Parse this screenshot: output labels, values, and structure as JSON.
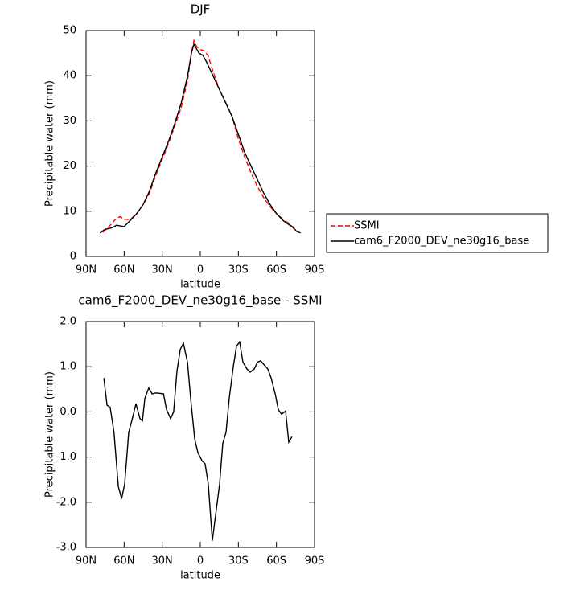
{
  "chart_data": [
    {
      "type": "line",
      "title": "DJF",
      "xlabel": "latitude",
      "ylabel": "Precipitable water (mm)",
      "xlim": [
        90,
        -90
      ],
      "xticks": [
        {
          "value": 90,
          "label": "90N"
        },
        {
          "value": 60,
          "label": "60N"
        },
        {
          "value": 30,
          "label": "30N"
        },
        0,
        {
          "value": -30,
          "label": "30S"
        },
        {
          "value": -60,
          "label": "60S"
        },
        {
          "value": -90,
          "label": "90S"
        }
      ],
      "ylim": [
        0,
        50
      ],
      "yticks": [
        0,
        10,
        20,
        30,
        40,
        50
      ],
      "legend": "right",
      "series": [
        {
          "name": "SSMI",
          "color": "#ff0000",
          "line_style": "dashed",
          "x": [
            77,
            73,
            69,
            66,
            63,
            60,
            55,
            50,
            45,
            40,
            35,
            30,
            25,
            20,
            15,
            10,
            7,
            5,
            3,
            0,
            -3,
            -6,
            -10,
            -15,
            -20,
            -25,
            -30,
            -35,
            -40,
            -45,
            -50,
            -55,
            -60,
            -65,
            -70,
            -74
          ],
          "values": [
            5.3,
            6.3,
            7.5,
            8.5,
            8.8,
            8.2,
            8.2,
            9.5,
            11.5,
            14,
            18,
            21.5,
            25,
            29,
            33,
            39,
            45,
            47.8,
            46.5,
            45.8,
            45.5,
            44.5,
            41,
            37,
            34,
            31,
            26,
            22,
            18.5,
            15.5,
            13,
            11,
            9.5,
            8.2,
            7.3,
            6
          ]
        },
        {
          "name": "cam6_F2000_DEV_ne30g16_base",
          "color": "#000000",
          "line_style": "solid",
          "x": [
            79,
            75,
            70,
            66,
            60,
            55,
            50,
            45,
            40,
            35,
            30,
            25,
            20,
            15,
            10,
            7,
            5,
            3,
            1,
            -2,
            -5,
            -10,
            -15,
            -20,
            -25,
            -30,
            -35,
            -40,
            -45,
            -50,
            -55,
            -60,
            -65,
            -70,
            -73,
            -76,
            -79
          ],
          "values": [
            5.2,
            6,
            6.3,
            6.9,
            6.6,
            8,
            9.5,
            11.5,
            14.5,
            18.5,
            22,
            25.5,
            29.5,
            34,
            40,
            45,
            47,
            46,
            45,
            44.5,
            43,
            40,
            37,
            34,
            31,
            27,
            23,
            20,
            17,
            14,
            11.5,
            9.5,
            8,
            7,
            6.5,
            5.5,
            5.2
          ]
        }
      ]
    },
    {
      "type": "line",
      "title": "cam6_F2000_DEV_ne30g16_base - SSMI",
      "xlabel": "latitude",
      "ylabel": "Precipitable water (mm)",
      "xlim": [
        90,
        -90
      ],
      "xticks": [
        {
          "value": 90,
          "label": "90N"
        },
        {
          "value": 60,
          "label": "60N"
        },
        {
          "value": 30,
          "label": "30N"
        },
        0,
        {
          "value": -30,
          "label": "30S"
        },
        {
          "value": -60,
          "label": "60S"
        },
        {
          "value": -90,
          "label": "90S"
        }
      ],
      "ylim": [
        -3,
        2
      ],
      "yticks": [
        {
          "value": -3,
          "label": "-3.0"
        },
        {
          "value": -2,
          "label": "-2.0"
        },
        {
          "value": -1,
          "label": "-1.0"
        },
        {
          "value": 0,
          "label": "0.0"
        },
        {
          "value": 1,
          "label": "1.0"
        },
        {
          "value": 2,
          "label": "2.0"
        }
      ],
      "series": [
        {
          "color": "#000000",
          "line_style": "solid",
          "x": [
            76,
            73.5,
            71,
            68,
            64.6,
            62,
            59.6,
            56.4,
            54,
            50.7,
            47.5,
            45.6,
            43.7,
            40.6,
            38,
            35,
            29,
            26.6,
            23.4,
            21,
            18.4,
            15.8,
            13.3,
            10.1,
            7.6,
            4.4,
            1.9,
            -1.3,
            -3.8,
            -6.3,
            -9.5,
            -12,
            -15.2,
            -17.7,
            -20.3,
            -22.8,
            -26,
            -28.5,
            -31,
            -33.6,
            -36.8,
            -39.3,
            -42.5,
            -45,
            -47.5,
            -53.2,
            -55.8,
            -59,
            -61.5,
            -64,
            -67.2,
            -69.7,
            -72.2
          ],
          "values": [
            0.75,
            0.15,
            0.1,
            -0.45,
            -1.65,
            -1.92,
            -1.6,
            -0.45,
            -0.2,
            0.18,
            -0.15,
            -0.2,
            0.3,
            0.53,
            0.4,
            0.42,
            0.4,
            0.05,
            -0.15,
            0,
            0.9,
            1.38,
            1.52,
            1.1,
            0.3,
            -0.6,
            -0.9,
            -1.08,
            -1.15,
            -1.6,
            -2.85,
            -2.3,
            -1.6,
            -0.7,
            -0.45,
            0.3,
            1.0,
            1.45,
            1.55,
            1.1,
            0.95,
            0.88,
            0.95,
            1.1,
            1.13,
            0.95,
            0.75,
            0.4,
            0.05,
            -0.05,
            0.02,
            -0.67,
            -0.55
          ]
        }
      ]
    }
  ]
}
